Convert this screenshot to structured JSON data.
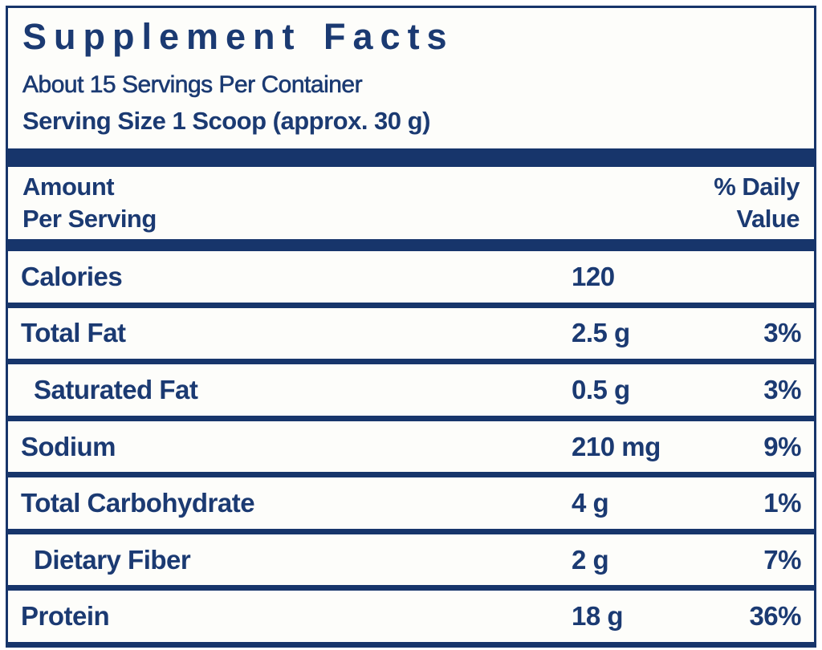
{
  "label": {
    "title": "Supplement Facts",
    "servings_per_container": "About 15 Servings Per Container",
    "serving_size": "Serving Size 1 Scoop (approx. 30 g)",
    "header": {
      "amount_line1": "Amount",
      "amount_line2": "Per Serving",
      "dv_line1": "% Daily",
      "dv_line2": "Value"
    },
    "rows": [
      {
        "name": "Calories",
        "amount": "120",
        "dv": "",
        "indent": false
      },
      {
        "name": "Total Fat",
        "amount": "2.5 g",
        "dv": "3%",
        "indent": false
      },
      {
        "name": "Saturated Fat",
        "amount": "0.5 g",
        "dv": "3%",
        "indent": true
      },
      {
        "name": "Sodium",
        "amount": "210 mg",
        "dv": "9%",
        "indent": false
      },
      {
        "name": "Total Carbohydrate",
        "amount": "4 g",
        "dv": "1%",
        "indent": false
      },
      {
        "name": "Dietary Fiber",
        "amount": "2 g",
        "dv": "7%",
        "indent": true
      },
      {
        "name": "Protein",
        "amount": "18 g",
        "dv": "36%",
        "indent": false
      }
    ],
    "colors": {
      "navy": "#17356b",
      "text": "#1b3a72",
      "background": "#fdfdfa"
    }
  }
}
